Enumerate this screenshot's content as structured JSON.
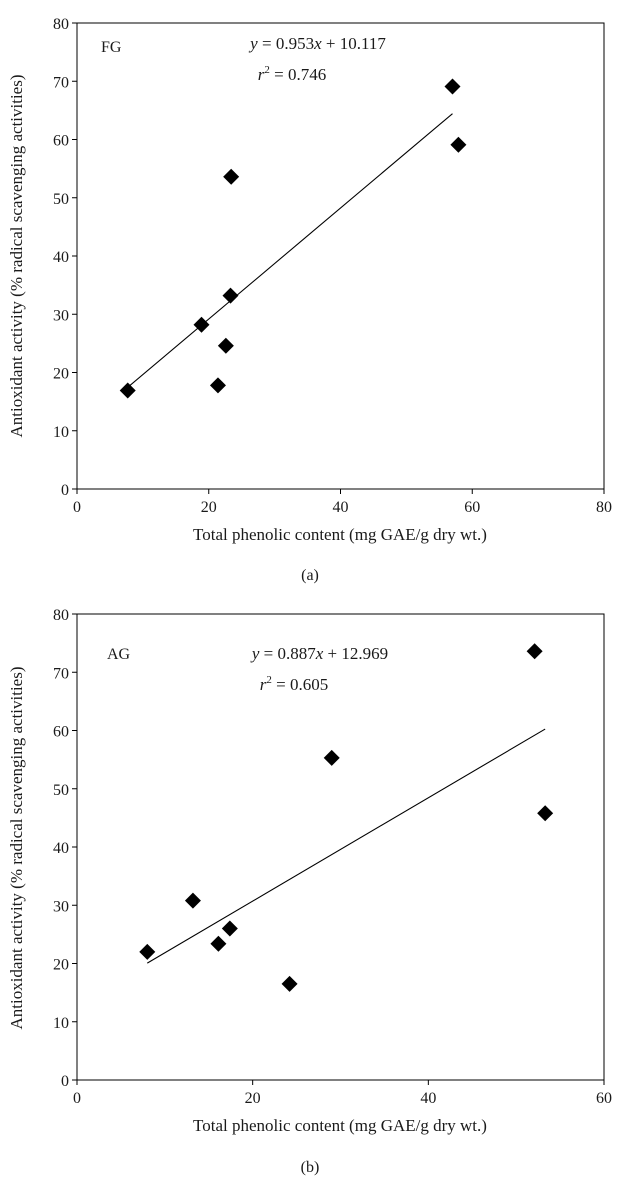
{
  "chart_data": [
    {
      "type": "scatter",
      "panel_label": "FG",
      "caption": "(a)",
      "xlabel": "Total phenolic content (mg GAE/g dry wt.)",
      "ylabel": "Antioxidant activity (% radical scavenging activities)",
      "xlim": [
        0,
        80
      ],
      "ylim": [
        0,
        80
      ],
      "xticks": [
        0,
        20,
        40,
        60,
        80
      ],
      "yticks": [
        0,
        10,
        20,
        30,
        40,
        50,
        60,
        70,
        80
      ],
      "grid": false,
      "marker": "diamond",
      "marker_color": "#000000",
      "points": [
        {
          "x": 7.7,
          "y": 16.9
        },
        {
          "x": 18.9,
          "y": 28.2
        },
        {
          "x": 21.4,
          "y": 17.8
        },
        {
          "x": 22.6,
          "y": 24.6
        },
        {
          "x": 23.3,
          "y": 33.2
        },
        {
          "x": 23.4,
          "y": 53.6
        },
        {
          "x": 57.0,
          "y": 69.1
        },
        {
          "x": 57.9,
          "y": 59.1
        }
      ],
      "trendline": {
        "slope": 0.953,
        "intercept": 10.117,
        "x_range": [
          7.7,
          57.0
        ]
      },
      "equation": {
        "y_var": "y",
        "eq_sign": " = ",
        "coef": "0.953",
        "x_var": "x",
        "rest": " + 10.117"
      },
      "r2": {
        "r_var": "r",
        "exp": "2",
        "eq_sign": " = ",
        "value": "0.746"
      }
    },
    {
      "type": "scatter",
      "panel_label": "AG",
      "caption": "(b)",
      "xlabel": "Total phenolic content (mg GAE/g dry wt.)",
      "ylabel": "Antioxidant activity (% radical scavenging activities)",
      "xlim": [
        0,
        60
      ],
      "ylim": [
        0,
        80
      ],
      "xticks": [
        0,
        20,
        40,
        60
      ],
      "yticks": [
        0,
        10,
        20,
        30,
        40,
        50,
        60,
        70,
        80
      ],
      "grid": false,
      "marker": "diamond",
      "marker_color": "#000000",
      "points": [
        {
          "x": 8.0,
          "y": 22.0
        },
        {
          "x": 13.2,
          "y": 30.8
        },
        {
          "x": 16.1,
          "y": 23.4
        },
        {
          "x": 17.4,
          "y": 26.0
        },
        {
          "x": 24.2,
          "y": 16.5
        },
        {
          "x": 29.0,
          "y": 55.3
        },
        {
          "x": 52.1,
          "y": 73.6
        },
        {
          "x": 53.3,
          "y": 45.8
        }
      ],
      "trendline": {
        "slope": 0.887,
        "intercept": 12.969,
        "x_range": [
          8.0,
          53.3
        ]
      },
      "equation": {
        "y_var": "y",
        "eq_sign": " = ",
        "coef": "0.887",
        "x_var": "x",
        "rest": " + 12.969"
      },
      "r2": {
        "r_var": "r",
        "exp": "2",
        "eq_sign": " = ",
        "value": "0.605"
      }
    }
  ]
}
